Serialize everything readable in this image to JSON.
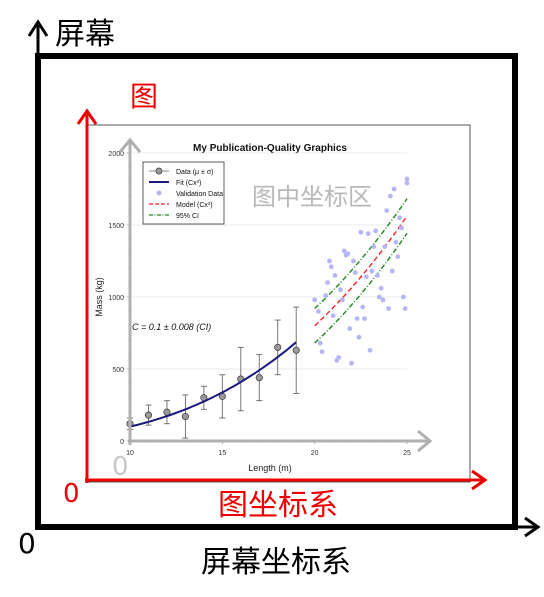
{
  "screen": {
    "title": "屏幕",
    "origin": "0",
    "caption": "屏幕坐标系",
    "frame_color": "#000000"
  },
  "figure": {
    "label": "图",
    "origin": "0",
    "caption": "图坐标系",
    "color": "#ee0000"
  },
  "axes": {
    "label": "图中坐标区",
    "origin": "0",
    "color": "#b0b0b0"
  },
  "chart_data": {
    "type": "scatter",
    "title": "My Publication-Quality Graphics",
    "xlabel": "Length (m)",
    "ylabel": "Mass (kg)",
    "xlim": [
      10,
      25
    ],
    "ylim": [
      0,
      2000
    ],
    "xticks": [
      10,
      15,
      20,
      25
    ],
    "yticks": [
      0,
      500,
      1000,
      1500,
      2000
    ],
    "grid": "horizontal",
    "legend_position": "top-left",
    "annotation": "C = 0.1 ± 0.008 (CI)",
    "legend": [
      "Data (μ ± σ)",
      "Fit (Cx³)",
      "Validation Data",
      "Model (Cx³)",
      "95% CI"
    ],
    "colors": {
      "data": "#9a9a9a",
      "fit": "#1a1a7e",
      "validation": "#b6b6f5",
      "model": "#ff2020",
      "ci": "#1a8a1a"
    },
    "data_points": {
      "x": [
        10,
        11,
        12,
        13,
        14,
        15,
        16,
        17,
        18,
        19
      ],
      "mean": [
        120,
        180,
        200,
        170,
        300,
        310,
        430,
        440,
        650,
        630
      ],
      "std": [
        40,
        70,
        80,
        150,
        80,
        150,
        220,
        160,
        190,
        300
      ]
    },
    "fit_range": [
      10,
      19
    ],
    "model_range": [
      20,
      25
    ],
    "ci_offset": 120,
    "C": 0.1,
    "validation": {
      "x": [
        20.0,
        20.2,
        20.4,
        20.6,
        20.8,
        21.0,
        21.1,
        21.3,
        21.5,
        21.7,
        21.9,
        22.0,
        22.2,
        22.3,
        22.5,
        22.6,
        22.8,
        23.0,
        23.1,
        23.3,
        23.5,
        23.6,
        23.8,
        24.0,
        24.1,
        24.3,
        24.5,
        24.7,
        24.9,
        25.0,
        20.3,
        20.9,
        21.4,
        21.8,
        22.4,
        22.9,
        23.4,
        23.9,
        24.4,
        24.8,
        21.2,
        22.1,
        23.2,
        24.2,
        20.7,
        22.7,
        23.7,
        24.6,
        21.6,
        25.0
      ],
      "y": [
        980,
        900,
        620,
        1010,
        1250,
        870,
        1150,
        580,
        980,
        1290,
        780,
        540,
        1170,
        850,
        1450,
        930,
        1140,
        630,
        1180,
        1460,
        1000,
        1060,
        1350,
        920,
        1700,
        1750,
        1280,
        1480,
        920,
        1820,
        680,
        1210,
        1050,
        1300,
        720,
        1440,
        1150,
        1600,
        1380,
        1000,
        560,
        1250,
        1350,
        1180,
        1100,
        850,
        980,
        1550,
        1320,
        1790
      ]
    }
  }
}
